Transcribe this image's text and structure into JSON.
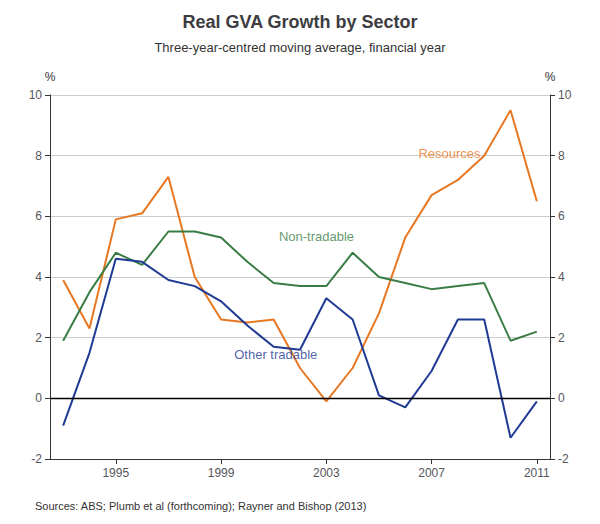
{
  "chart_data": {
    "type": "line",
    "title": "Real GVA Growth by Sector",
    "subtitle": "Three-year-centred moving average, financial year",
    "source": "Sources: ABS; Plumb et al (forthcoming); Rayner and Bishop (2013)",
    "ylabel": "%",
    "y2label": "%",
    "x": [
      1993,
      1994,
      1995,
      1996,
      1997,
      1998,
      1999,
      2000,
      2001,
      2002,
      2003,
      2004,
      2005,
      2006,
      2007,
      2008,
      2009,
      2010,
      2011
    ],
    "series": [
      {
        "name": "Resources",
        "color": "#E87722",
        "values": [
          3.9,
          2.3,
          5.9,
          6.1,
          7.3,
          4.0,
          2.6,
          2.5,
          2.6,
          1.0,
          -0.1,
          1.0,
          2.8,
          5.3,
          6.7,
          7.2,
          8.0,
          9.5,
          6.5
        ]
      },
      {
        "name": "Non-tradable",
        "color": "#3A7D44",
        "values": [
          1.9,
          3.5,
          4.8,
          4.4,
          5.5,
          5.5,
          5.3,
          4.5,
          3.8,
          3.7,
          3.7,
          4.8,
          4.0,
          3.8,
          3.6,
          3.7,
          3.8,
          1.9,
          2.2
        ]
      },
      {
        "name": "Other tradable",
        "color": "#1F3A93",
        "values": [
          -0.9,
          1.5,
          4.6,
          4.5,
          3.9,
          3.7,
          3.2,
          2.4,
          1.7,
          1.6,
          3.3,
          2.6,
          0.1,
          -0.3,
          0.9,
          2.6,
          2.6,
          -1.3,
          -0.1
        ]
      }
    ],
    "annotations": [
      {
        "text": "Resources",
        "x": 2006.5,
        "y": 7.8,
        "color": "#E87722"
      },
      {
        "text": "Non-tradable",
        "x": 2001.2,
        "y": 5.05,
        "color": "#3A7D44"
      },
      {
        "text": "Other tradable",
        "x": 1999.5,
        "y": 1.15,
        "color": "#1F3A93"
      }
    ],
    "xlim": [
      1992.5,
      2011.5
    ],
    "xticks": [
      1995,
      1999,
      2003,
      2007,
      2011
    ],
    "ylim": [
      -2,
      10
    ],
    "yticks": [
      -2,
      0,
      2,
      4,
      6,
      8,
      10
    ],
    "y2lim": [
      -2,
      10
    ],
    "y2ticks": [
      -2,
      0,
      2,
      4,
      6,
      8,
      10
    ],
    "grid": true
  }
}
